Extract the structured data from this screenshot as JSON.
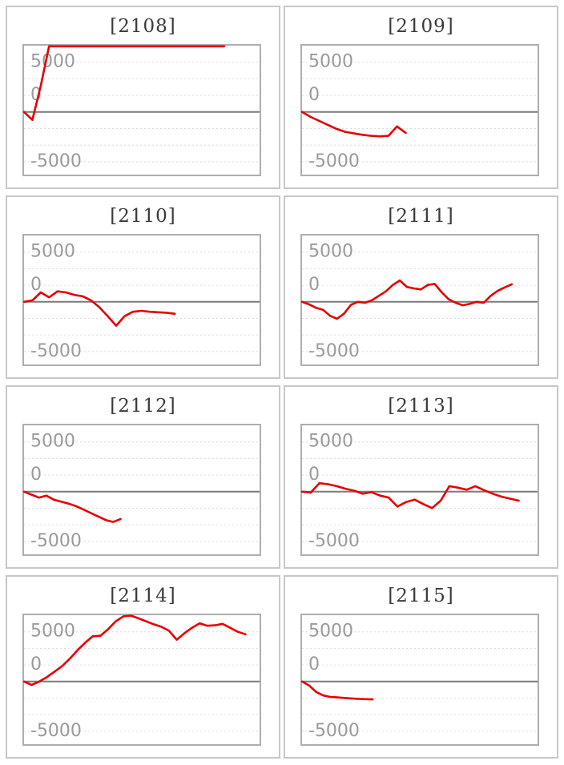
{
  "page": {
    "background": "#ffffff"
  },
  "style": {
    "series_color": "#e60000",
    "series_width": 2.6,
    "gridline_color": "#dcdcdc",
    "zero_line_color": "#7a7a7a",
    "plot_border_color": "#aeaeae",
    "tile_border_color": "#c8c8c8",
    "tick_label_color": "#9a9a9a",
    "title_color": "#3a3a3a"
  },
  "axis": {
    "gridline_count": 7,
    "dark_line_index": 4,
    "y_ticks": [
      {
        "label": "5000",
        "line_index": 1
      },
      {
        "label": "0",
        "line_index": 3
      },
      {
        "label": "-5000",
        "line_index": 7
      }
    ],
    "y_min": -6300,
    "y_max": 6700,
    "units_per_three_steps": 5000
  },
  "chart_data": [
    {
      "type": "line",
      "title": "[2108]",
      "x_span_frac": 0.85,
      "values": [
        0,
        -800,
        2600,
        6600,
        6600,
        6600,
        6600,
        6600,
        6600,
        6600,
        6600,
        6600,
        6600,
        6600,
        6600,
        6600,
        6600,
        6600,
        6600,
        6600,
        6600,
        6600,
        6600,
        6600,
        6600
      ]
    },
    {
      "type": "line",
      "title": "[2109]",
      "x_span_frac": 0.44,
      "values": [
        0,
        -500,
        -900,
        -1300,
        -1700,
        -2000,
        -2150,
        -2300,
        -2400,
        -2450,
        -2400,
        -1450,
        -2100
      ]
    },
    {
      "type": "line",
      "title": "[2110]",
      "x_span_frac": 0.64,
      "values": [
        0,
        150,
        950,
        450,
        1050,
        950,
        700,
        550,
        150,
        -550,
        -1450,
        -2400,
        -1450,
        -1000,
        -900,
        -1000,
        -1050,
        -1100,
        -1200
      ]
    },
    {
      "type": "line",
      "title": "[2111]",
      "x_span_frac": 0.89,
      "values": [
        0,
        -250,
        -600,
        -800,
        -1400,
        -1700,
        -1200,
        -300,
        0,
        -100,
        150,
        600,
        1050,
        1700,
        2150,
        1500,
        1350,
        1250,
        1700,
        1800,
        950,
        250,
        -100,
        -350,
        -200,
        0,
        -100,
        600,
        1100,
        1450,
        1750
      ]
    },
    {
      "type": "line",
      "title": "[2112]",
      "x_span_frac": 0.41,
      "values": [
        0,
        -300,
        -600,
        -400,
        -800,
        -1000,
        -1200,
        -1450,
        -1800,
        -2150,
        -2500,
        -2850,
        -3050,
        -2750
      ]
    },
    {
      "type": "line",
      "title": "[2113]",
      "x_span_frac": 0.92,
      "values": [
        0,
        -100,
        850,
        750,
        550,
        300,
        100,
        -200,
        -50,
        -400,
        -600,
        -1500,
        -1050,
        -800,
        -1250,
        -1650,
        -900,
        550,
        400,
        200,
        550,
        150,
        -200,
        -500,
        -700,
        -900
      ]
    },
    {
      "type": "line",
      "title": "[2114]",
      "x_span_frac": 0.94,
      "values": [
        0,
        -350,
        0,
        450,
        1000,
        1550,
        2300,
        3150,
        3900,
        4550,
        4600,
        5250,
        6050,
        6550,
        6650,
        6350,
        6050,
        5750,
        5500,
        5100,
        4200,
        4850,
        5400,
        5850,
        5600,
        5650,
        5800,
        5400,
        5000,
        4750
      ]
    },
    {
      "type": "line",
      "title": "[2115]",
      "x_span_frac": 0.3,
      "values": [
        0,
        -400,
        -1050,
        -1400,
        -1550,
        -1600,
        -1650,
        -1700,
        -1750,
        -1775,
        -1800
      ]
    }
  ]
}
